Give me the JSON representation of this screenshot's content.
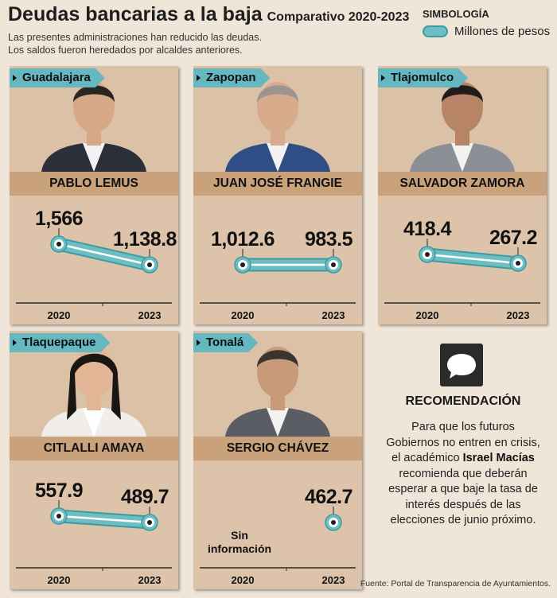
{
  "header": {
    "title": "Deudas bancarias a la baja",
    "subtitle": "Comparativo 2020-2023",
    "description_line1": "Las presentes administraciones han reducido las deudas.",
    "description_line2": "Los saldos fueron heredados por alcaldes anteriores."
  },
  "legend": {
    "title": "SIMBOLOGÍA",
    "item": "Millones de pesos",
    "color": "#6dbec3"
  },
  "recommendation": {
    "icon": "speech-bubble-icon",
    "title": "RECOMENDACIÓN",
    "text_before": "Para que los futuros Gobiernos no entren en crisis, el académico",
    "highlight": "Israel Macías",
    "text_after": "recomienda que deberán esperar a que baje la tasa de interés después de las elecciones de junio próximo."
  },
  "source": "Fuente: Portal de Transparencia de Ayuntamientos.",
  "chart_data": [
    {
      "type": "line",
      "municipality": "Guadalajara",
      "mayor": "PABLO LEMUS",
      "x": [
        "2020",
        "2023"
      ],
      "values": [
        1566,
        1138.8
      ],
      "labels": [
        "1,566",
        "1,138.8"
      ],
      "unit": "Millones de pesos"
    },
    {
      "type": "line",
      "municipality": "Zapopan",
      "mayor": "JUAN JOSÉ FRANGIE",
      "x": [
        "2020",
        "2023"
      ],
      "values": [
        1012.6,
        983.5
      ],
      "labels": [
        "1,012.6",
        "983.5"
      ],
      "unit": "Millones de pesos"
    },
    {
      "type": "line",
      "municipality": "Tlajomulco",
      "mayor": "SALVADOR ZAMORA",
      "x": [
        "2020",
        "2023"
      ],
      "values": [
        418.4,
        267.2
      ],
      "labels": [
        "418.4",
        "267.2"
      ],
      "unit": "Millones de pesos"
    },
    {
      "type": "line",
      "municipality": "Tlaquepaque",
      "mayor": "CITLALLI AMAYA",
      "x": [
        "2020",
        "2023"
      ],
      "values": [
        557.9,
        489.7
      ],
      "labels": [
        "557.9",
        "489.7"
      ],
      "unit": "Millones de pesos"
    },
    {
      "type": "line",
      "municipality": "Tonalá",
      "mayor": "SERGIO CHÁVEZ",
      "x": [
        "2020",
        "2023"
      ],
      "values": [
        null,
        462.7
      ],
      "labels": [
        "Sin información",
        "462.7"
      ],
      "unit": "Millones de pesos"
    }
  ]
}
